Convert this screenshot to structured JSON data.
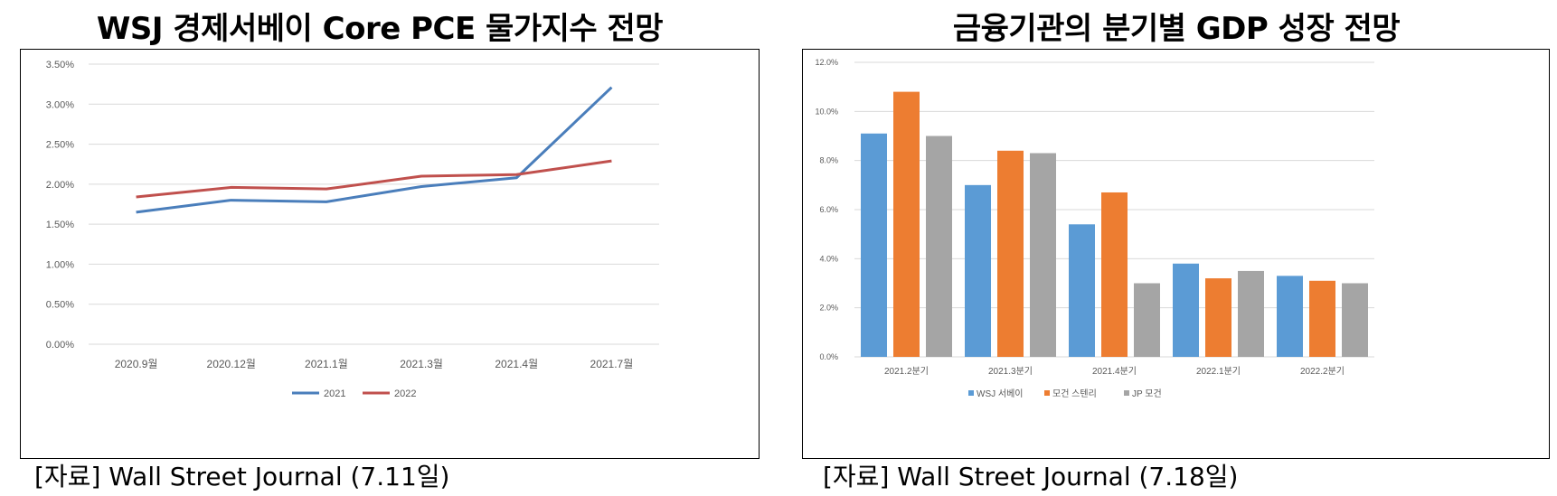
{
  "left_title": "WSJ 경제서베이 Core PCE 물가지수 전망",
  "right_title": "금융기관의 분기별 GDP 성장 전망",
  "left_source": "[자료] Wall Street Journal (7.11일)",
  "right_source": "[자료] Wall Street Journal (7.18일)",
  "colors": {
    "series_2021": "#4a7ebb",
    "series_2022": "#c0504d",
    "wsj": "#5b9bd5",
    "ms": "#ed7d31",
    "jp": "#a5a5a5",
    "grid": "#d9d9d9"
  },
  "chart_data": [
    {
      "type": "line",
      "title": "WSJ 경제서베이 Core PCE 물가지수 전망",
      "categories": [
        "2020.9월",
        "2020.12월",
        "2021.1월",
        "2021.3월",
        "2021.4월",
        "2021.7월"
      ],
      "series": [
        {
          "name": "2021",
          "values": [
            1.65,
            1.8,
            1.78,
            1.97,
            2.08,
            3.21
          ]
        },
        {
          "name": "2022",
          "values": [
            1.84,
            1.96,
            1.94,
            2.1,
            2.12,
            2.29
          ]
        }
      ],
      "y_ticks": [
        "0.00%",
        "0.50%",
        "1.00%",
        "1.50%",
        "2.00%",
        "2.50%",
        "3.00%",
        "3.50%"
      ],
      "ylim": [
        0,
        3.5
      ],
      "grid": true,
      "legend_position": "bottom"
    },
    {
      "type": "bar",
      "title": "금융기관의 분기별 GDP 성장 전망",
      "categories": [
        "2021.2분기",
        "2021.3분기",
        "2021.4분기",
        "2022.1분기",
        "2022.2분기"
      ],
      "series": [
        {
          "name": "WSJ 서베이",
          "values": [
            9.1,
            7.0,
            5.4,
            3.8,
            3.3
          ]
        },
        {
          "name": "모건 스텐리",
          "values": [
            10.8,
            8.4,
            6.7,
            3.2,
            3.1
          ]
        },
        {
          "name": "JP 모건",
          "values": [
            9.0,
            8.3,
            3.0,
            3.5,
            3.0
          ]
        }
      ],
      "y_ticks": [
        "0.0%",
        "2.0%",
        "4.0%",
        "6.0%",
        "8.0%",
        "10.0%",
        "12.0%"
      ],
      "ylim": [
        0,
        12
      ],
      "grid": true,
      "legend_position": "bottom"
    }
  ]
}
